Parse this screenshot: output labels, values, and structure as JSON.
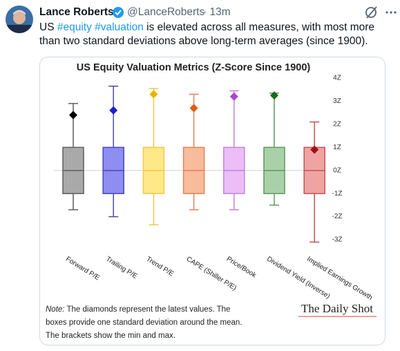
{
  "tweet": {
    "name": "Lance Roberts",
    "handle": "@LanceRoberts",
    "time": "· 13m",
    "text_parts": [
      "US ",
      "#equity",
      " ",
      "#valuation",
      " is elevated across all measures, with most more than two standard deviations above long-term averages (since 1900)."
    ]
  },
  "chart_data": {
    "type": "box",
    "title": "US Equity Valuation Metrics (Z-Score Since 1900)",
    "categories": [
      "Forward P/E",
      "Trailing P/E",
      "Trend P/E",
      "CAPE (Shiller P/E)",
      "Price/Book",
      "Dividend Yield (Inverse)",
      "Implied Earnings Growth"
    ],
    "min": [
      -1.7,
      -2.0,
      -2.35,
      -1.7,
      -1.7,
      -1.5,
      -3.1
    ],
    "q1": [
      -1,
      -1,
      -1,
      -1,
      -1,
      -1,
      -1
    ],
    "median": [
      0,
      0,
      0,
      0,
      0,
      0,
      0
    ],
    "q3": [
      1,
      1,
      1,
      1,
      1,
      1,
      1
    ],
    "max": [
      2.9,
      3.65,
      3.55,
      3.3,
      3.45,
      3.35,
      2.1
    ],
    "latest": [
      2.4,
      2.6,
      3.3,
      2.7,
      3.2,
      3.25,
      0.9
    ],
    "fill_colors": [
      "#a9a9a9",
      "#8d8df2",
      "#ffe888",
      "#f8bb9c",
      "#ecbdf6",
      "#a9d1a9",
      "#f0a3a3"
    ],
    "stroke_colors": [
      "#5e5e5e",
      "#4848b8",
      "#f2c94a",
      "#e1835c",
      "#c184e0",
      "#5b9a5b",
      "#c25454"
    ],
    "latest_colors": [
      "#000000",
      "#1e1ecf",
      "#e8b500",
      "#e05a12",
      "#b142d1",
      "#1b6a1b",
      "#a31212"
    ],
    "ylim": [
      -3.4,
      4.0
    ],
    "yticks": [
      {
        "value": 4,
        "label": "4Z"
      },
      {
        "value": 3,
        "label": "3Z"
      },
      {
        "value": 2,
        "label": "2Z"
      },
      {
        "value": 1,
        "label": "1Z"
      },
      {
        "value": 0,
        "label": "0Z"
      },
      {
        "value": -1,
        "label": "-1Z"
      },
      {
        "value": -2,
        "label": "-2Z"
      },
      {
        "value": -3,
        "label": "-3Z"
      }
    ],
    "note_label": "Note:",
    "note_lines": [
      "The diamonds represent the latest values. The",
      "boxes provide one standard deviation around the mean.",
      "The brackets show the min and max."
    ],
    "source": "The Daily Shot"
  }
}
